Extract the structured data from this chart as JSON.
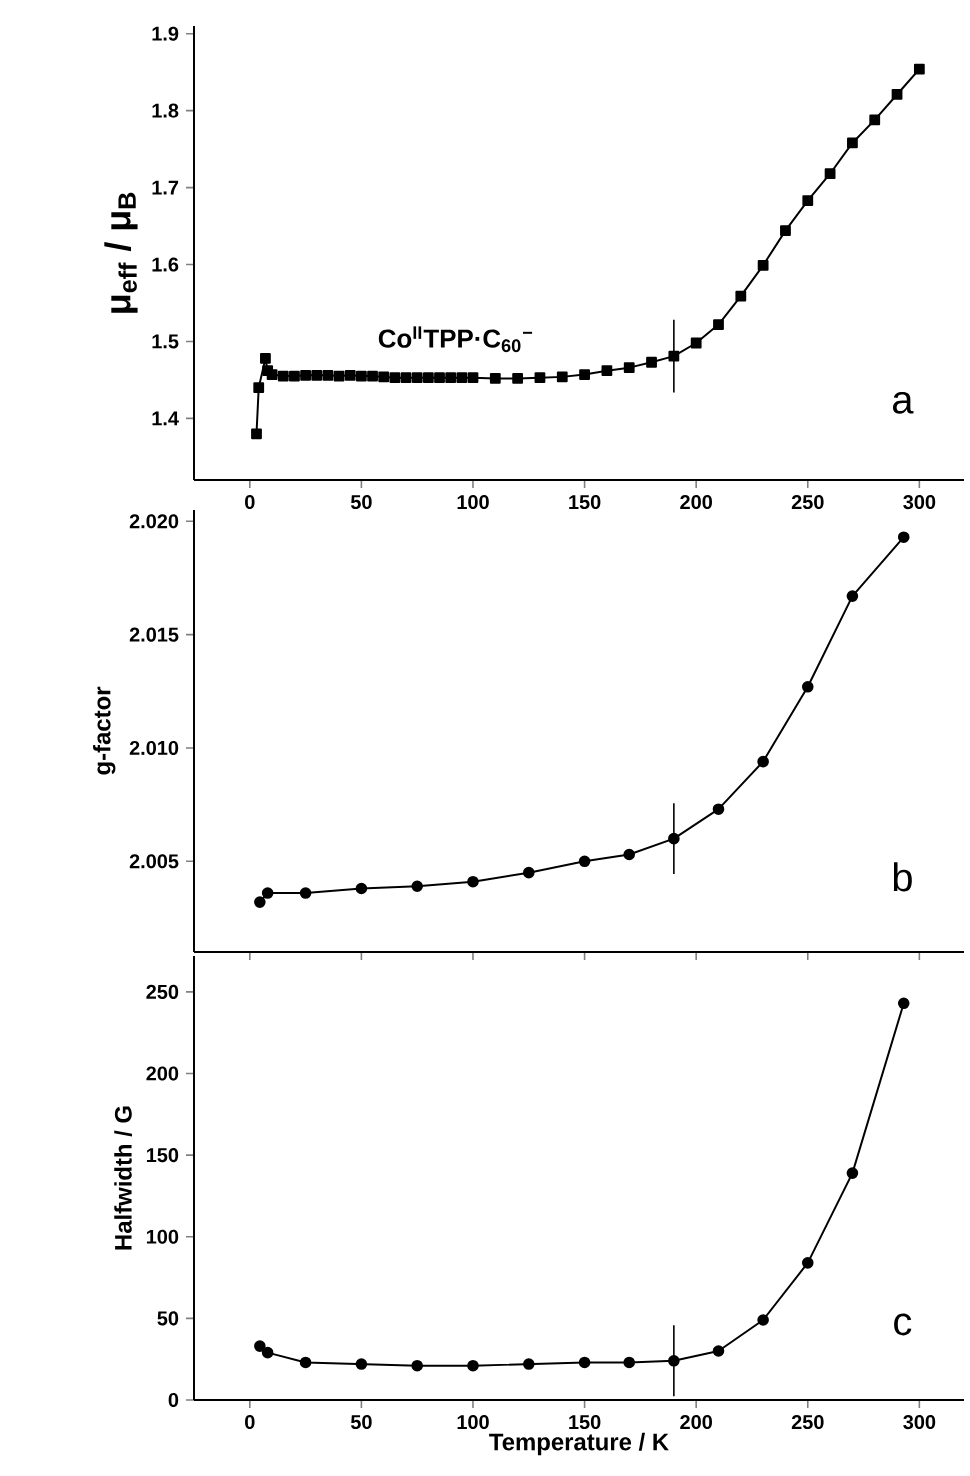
{
  "chart_data": [
    {
      "type": "line",
      "ylabel": "μ$_{eff}$ / μ$_{B}$",
      "annotations": [
        "Co$^{II}$TPP·C$_{60}$$^{−}$",
        "a"
      ],
      "marker": "square",
      "line_style": "solid",
      "xlim": [
        -25,
        320
      ],
      "xticks": [
        0,
        50,
        100,
        150,
        200,
        250,
        300
      ],
      "ylim": [
        1.32,
        1.91
      ],
      "yticks": [
        1.4,
        1.5,
        1.6,
        1.7,
        1.8,
        1.9
      ],
      "ref_lines": [
        {
          "axis": "x",
          "value": 190
        }
      ],
      "series": [
        {
          "color": "#000000",
          "x": [
            3,
            4,
            7,
            8,
            10,
            15,
            20,
            25,
            30,
            35,
            40,
            45,
            50,
            55,
            60,
            65,
            70,
            75,
            80,
            85,
            90,
            95,
            100,
            110,
            120,
            130,
            140,
            150,
            160,
            170,
            180,
            190,
            200,
            210,
            220,
            230,
            240,
            250,
            260,
            270,
            280,
            290,
            300
          ],
          "values": [
            1.38,
            1.44,
            1.478,
            1.462,
            1.457,
            1.455,
            1.455,
            1.456,
            1.456,
            1.456,
            1.455,
            1.456,
            1.455,
            1.455,
            1.454,
            1.453,
            1.453,
            1.453,
            1.453,
            1.453,
            1.453,
            1.453,
            1.453,
            1.452,
            1.452,
            1.453,
            1.454,
            1.457,
            1.462,
            1.466,
            1.473,
            1.481,
            1.498,
            1.522,
            1.559,
            1.599,
            1.644,
            1.683,
            1.718,
            1.758,
            1.788,
            1.821,
            1.854
          ]
        }
      ]
    },
    {
      "type": "line",
      "ylabel": "g-factor",
      "annotations": [
        "b"
      ],
      "marker": "circle",
      "line_style": "solid",
      "tick_labels": "y",
      "xlim": [
        -25,
        320
      ],
      "xticks": [
        0,
        50,
        100,
        150,
        200,
        250,
        300
      ],
      "ylim": [
        2.001,
        2.0205
      ],
      "yticks": [
        {
          "value": 2.005,
          "label": "2.005"
        },
        {
          "value": 2.01,
          "label": "2.010"
        },
        {
          "value": 2.015,
          "label": "2.015"
        },
        {
          "value": 2.02,
          "label": "2.020"
        }
      ],
      "ref_lines": [
        {
          "axis": "x",
          "value": 190
        }
      ],
      "series": [
        {
          "color": "#000000",
          "x": [
            4.5,
            8,
            25,
            50,
            75,
            100,
            125,
            150,
            170,
            190,
            210,
            230,
            250,
            270,
            293
          ],
          "values": [
            2.0032,
            2.0036,
            2.0036,
            2.0038,
            2.0039,
            2.0041,
            2.0045,
            2.005,
            2.0053,
            2.006,
            2.0073,
            2.0094,
            2.0127,
            2.0167,
            2.0193
          ]
        }
      ]
    },
    {
      "type": "line",
      "xlabel": "Temperature / K",
      "ylabel": "Halfwidth / G",
      "annotations": [
        "c"
      ],
      "marker": "circle",
      "line_style": "solid",
      "xlim": [
        -25,
        320
      ],
      "xticks": [
        0,
        50,
        100,
        150,
        200,
        250,
        300
      ],
      "ylim": [
        0,
        272
      ],
      "yticks": [
        0,
        50,
        100,
        150,
        200,
        250
      ],
      "ref_lines": [
        {
          "axis": "x",
          "value": 190
        }
      ],
      "series": [
        {
          "color": "#000000",
          "x": [
            4.5,
            8,
            25,
            50,
            75,
            100,
            125,
            150,
            170,
            190,
            210,
            230,
            250,
            270,
            293
          ],
          "values": [
            33,
            29,
            23,
            22,
            21,
            21,
            22,
            23,
            23,
            24,
            30,
            49,
            84,
            139,
            243
          ]
        }
      ]
    }
  ]
}
